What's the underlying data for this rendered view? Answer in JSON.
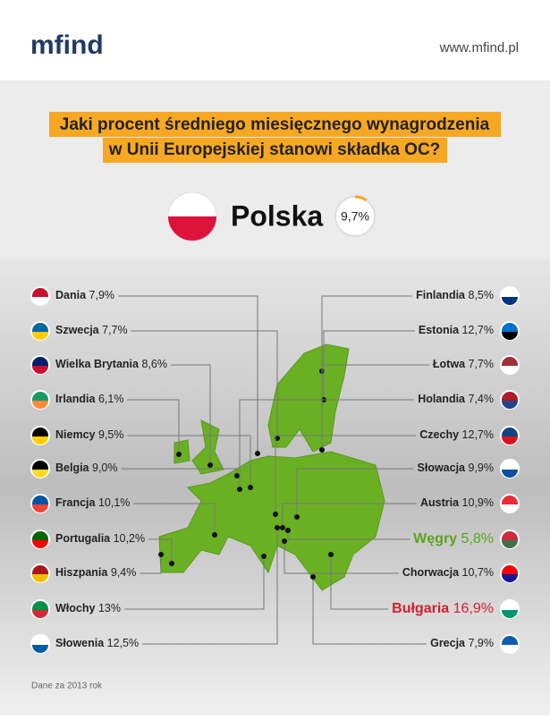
{
  "header": {
    "logo": "mfind",
    "url": "www.mfind.pl"
  },
  "title": [
    "Jaki procent średniego miesięcznego wynagrodzenia",
    "w Unii Europejskiej stanowi składka OC?"
  ],
  "highlight": {
    "name": "Polska",
    "value": 9.7,
    "label": "9,7%"
  },
  "countries_left": [
    {
      "name": "Dania",
      "value": "7,9%"
    },
    {
      "name": "Szwecja",
      "value": "7,7%"
    },
    {
      "name": "Wielka Brytania",
      "value": "8,6%"
    },
    {
      "name": "Irlandia",
      "value": "6,1%"
    },
    {
      "name": "Niemcy",
      "value": "9,5%"
    },
    {
      "name": "Belgia",
      "value": "9,0%"
    },
    {
      "name": "Francja",
      "value": "10,1%"
    },
    {
      "name": "Portugalia",
      "value": "10,2%"
    },
    {
      "name": "Hiszpania",
      "value": "9,4%"
    },
    {
      "name": "Włochy",
      "value": "13%"
    },
    {
      "name": "Słowenia",
      "value": "12,5%"
    }
  ],
  "countries_right": [
    {
      "name": "Finlandia",
      "value": "8,5%"
    },
    {
      "name": "Estonia",
      "value": "12,7%"
    },
    {
      "name": "Łotwa",
      "value": "7,7%"
    },
    {
      "name": "Holandia",
      "value": "7,4%"
    },
    {
      "name": "Czechy",
      "value": "12,7%"
    },
    {
      "name": "Słowacja",
      "value": "9,9%"
    },
    {
      "name": "Austria",
      "value": "10,9%"
    },
    {
      "name": "Węgry",
      "value": "5,8%"
    },
    {
      "name": "Chorwacja",
      "value": "10,7%"
    },
    {
      "name": "Bułgaria",
      "value": "16,9%"
    },
    {
      "name": "Grecja",
      "value": "7,9%"
    }
  ],
  "footnote": "Dane za 2013 rok"
}
